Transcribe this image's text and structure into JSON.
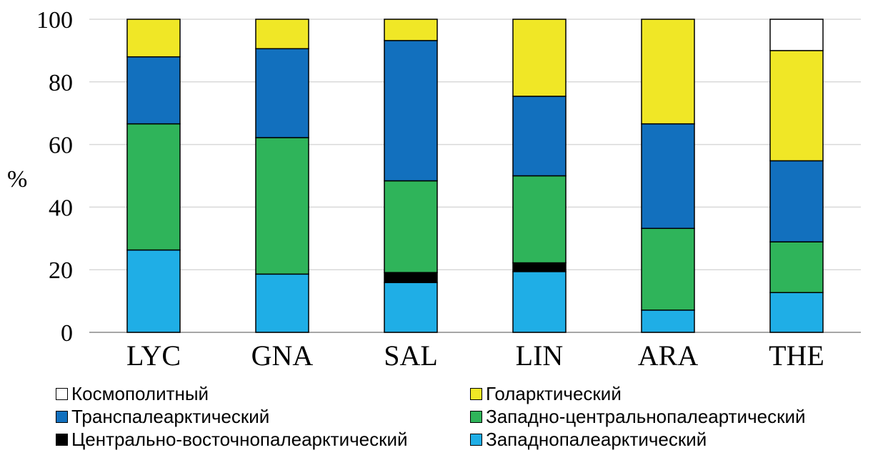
{
  "chart_data": {
    "type": "bar",
    "stacked": true,
    "categories": [
      "LYC",
      "GNA",
      "SAL",
      "LIN",
      "ARA",
      "THE"
    ],
    "ylabel": "%",
    "xlabel": "",
    "ylim": [
      0,
      100
    ],
    "yticks": [
      "0",
      "20",
      "40",
      "60",
      "80",
      "100"
    ],
    "grid": true,
    "legend_position": "bottom",
    "series": [
      {
        "name": "Западнопалеарктический",
        "color": "#1FAEE6",
        "values": [
          26.3,
          18.6,
          15.9,
          19.4,
          7.1,
          12.7
        ]
      },
      {
        "name": "Центрально-восточнопалеарктический",
        "color": "#000000",
        "values": [
          0,
          0,
          3.2,
          2.8,
          0,
          0
        ]
      },
      {
        "name": "Западно-центральнопалеартический",
        "color": "#2FB45A",
        "values": [
          40.3,
          43.6,
          29.3,
          27.8,
          26.1,
          16.2
        ]
      },
      {
        "name": "Транспалеарктический",
        "color": "#1270BE",
        "values": [
          21.4,
          28.4,
          44.8,
          25.4,
          33.4,
          25.9
        ]
      },
      {
        "name": "Голарктический",
        "color": "#F0E726",
        "values": [
          12.0,
          9.4,
          6.8,
          24.6,
          33.4,
          35.2
        ]
      },
      {
        "name": "Космополитный",
        "color": "#FFFFFF",
        "values": [
          0,
          0,
          0,
          0,
          0,
          10.0
        ]
      }
    ]
  },
  "legend": [
    {
      "label": "Космополитный",
      "color": "#FFFFFF"
    },
    {
      "label": "Голарктический",
      "color": "#F0E726"
    },
    {
      "label": "Транспалеарктический",
      "color": "#1270BE"
    },
    {
      "label": "Западно-центральнопалеартический",
      "color": "#2FB45A"
    },
    {
      "label": "Центрально-восточнопалеарктический",
      "color": "#000000"
    },
    {
      "label": "Западнопалеарктический",
      "color": "#1FAEE6"
    }
  ]
}
